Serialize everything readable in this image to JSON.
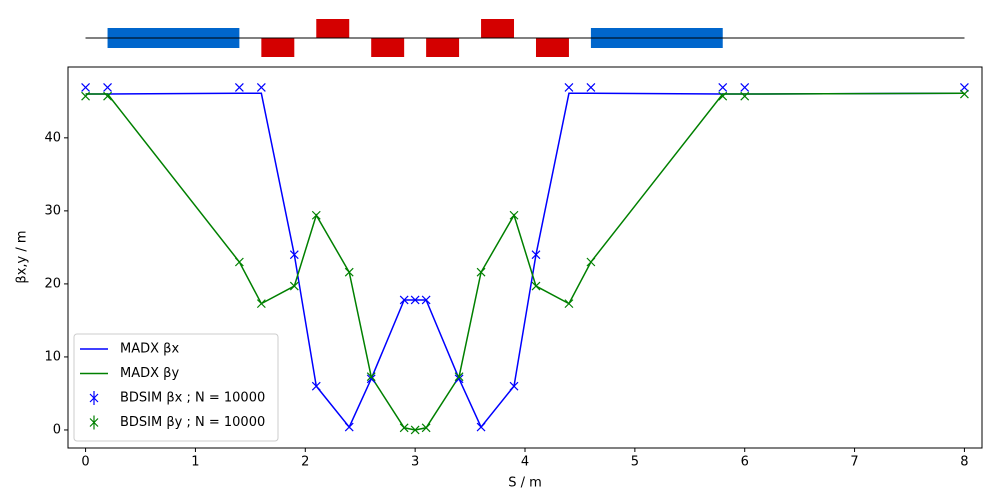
{
  "chart_data": {
    "type": "line",
    "x_label": "S / m",
    "y_label": "βx,y / m",
    "x": [
      0,
      0.2,
      1.4,
      1.6,
      1.9,
      2.1,
      2.4,
      2.6,
      2.9,
      3.0,
      3.1,
      3.4,
      3.6,
      3.9,
      4.1,
      4.4,
      4.6,
      5.8,
      6.0,
      8.0
    ],
    "series": [
      {
        "name": "MADX βx",
        "type": "line",
        "color": "#0000ff",
        "values": [
          46,
          46,
          46.1,
          46.1,
          24,
          6,
          0.4,
          7,
          17.8,
          17.8,
          17.8,
          7,
          0.4,
          6,
          24,
          46.1,
          46.1,
          46,
          46,
          46.1
        ]
      },
      {
        "name": "MADX βy",
        "type": "line",
        "color": "#008000",
        "values": [
          46,
          46,
          23,
          17.3,
          19.7,
          29.4,
          21.6,
          7.3,
          0.3,
          0,
          0.3,
          7.3,
          21.6,
          29.4,
          19.7,
          17.3,
          23,
          46,
          46,
          46.1
        ]
      },
      {
        "name": "BDSIM βx ; N = 10000",
        "type": "scatter",
        "color": "#0000ff",
        "values": [
          46.9,
          46.9,
          46.9,
          46.9,
          24,
          6,
          0.4,
          7,
          17.8,
          17.8,
          17.8,
          7,
          0.4,
          6,
          24,
          46.9,
          46.9,
          46.9,
          46.9,
          46.9
        ]
      },
      {
        "name": "BDSIM βy ; N = 10000",
        "type": "scatter",
        "color": "#008000",
        "values": [
          45.7,
          45.7,
          23,
          17.3,
          19.7,
          29.4,
          21.6,
          7.3,
          0.3,
          0,
          0.3,
          7.3,
          21.6,
          29.4,
          19.7,
          17.3,
          23,
          45.7,
          45.7,
          46
        ]
      }
    ],
    "xlim": [
      -0.16,
      8.16
    ],
    "ylim": [
      -2.47,
      49.7
    ],
    "xticks": [
      0,
      1,
      2,
      3,
      4,
      5,
      6,
      7,
      8
    ],
    "yticks": [
      0,
      10,
      20,
      30,
      40
    ],
    "legend": "lower left",
    "beamline": [
      {
        "start": 0.2,
        "end": 1.4,
        "position": "center",
        "color": "#0066cc"
      },
      {
        "start": 1.6,
        "end": 1.9,
        "position": "below",
        "color": "#d40000"
      },
      {
        "start": 2.1,
        "end": 2.4,
        "position": "above",
        "color": "#d40000"
      },
      {
        "start": 2.6,
        "end": 2.9,
        "position": "below",
        "color": "#d40000"
      },
      {
        "start": 3.1,
        "end": 3.4,
        "position": "below",
        "color": "#d40000"
      },
      {
        "start": 3.6,
        "end": 3.9,
        "position": "above",
        "color": "#d40000"
      },
      {
        "start": 4.1,
        "end": 4.4,
        "position": "below",
        "color": "#d40000"
      },
      {
        "start": 4.6,
        "end": 5.8,
        "position": "center",
        "color": "#0066cc"
      }
    ]
  }
}
